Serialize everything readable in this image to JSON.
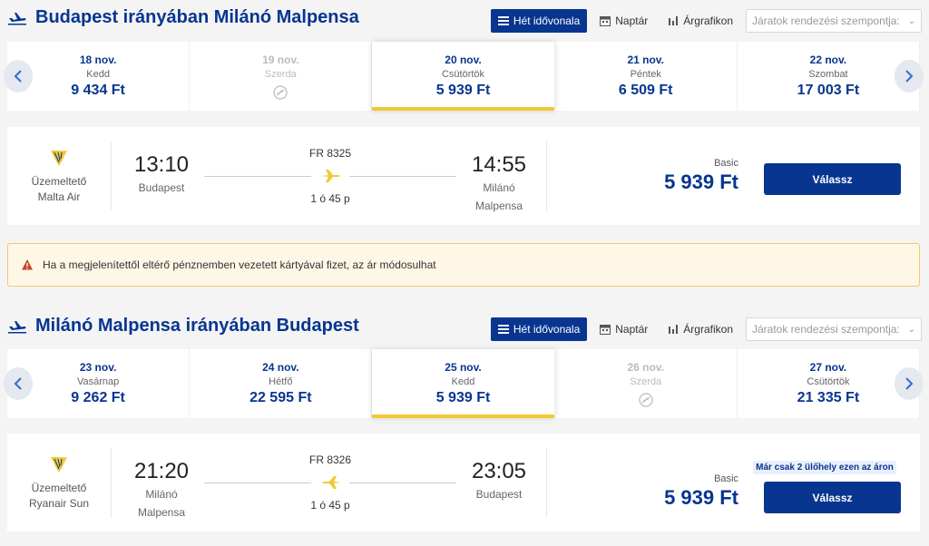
{
  "colors": {
    "brand": "#073590",
    "accent": "#f1c933",
    "warning_bg": "#fff7e6",
    "warning_icon": "#c9442b"
  },
  "view_labels": {
    "week": "Hét idővonala",
    "calendar": "Naptár",
    "chart": "Árgrafikon",
    "sort_placeholder": "Járatok rendezési szempontja:"
  },
  "outbound": {
    "title": "Budapest irányában Milánó Malpensa",
    "dates": [
      {
        "date": "18 nov.",
        "weekday": "Kedd",
        "price": "9 434 Ft",
        "state": "normal"
      },
      {
        "date": "19 nov.",
        "weekday": "Szerda",
        "price": "",
        "state": "disabled"
      },
      {
        "date": "20 nov.",
        "weekday": "Csütörtök",
        "price": "5 939 Ft",
        "state": "selected"
      },
      {
        "date": "21 nov.",
        "weekday": "Péntek",
        "price": "6 509 Ft",
        "state": "normal"
      },
      {
        "date": "22 nov.",
        "weekday": "Szombat",
        "price": "17 003 Ft",
        "state": "normal"
      }
    ],
    "flight": {
      "operator_label": "Üzemeltető",
      "operator_name": "Malta Air",
      "dep_time": "13:10",
      "dep_place_1": "Budapest",
      "dep_place_2": "",
      "flight_no": "FR 8325",
      "duration": "1 ó 45 p",
      "arr_time": "14:55",
      "arr_place_1": "Milánó",
      "arr_place_2": "Malpensa",
      "fare_type": "Basic",
      "price": "5 939 Ft",
      "select_label": "Válassz",
      "seats_badge": ""
    }
  },
  "warning": {
    "text": "Ha a megjelenítettől eltérő pénznemben vezetett kártyával fizet, az ár módosulhat"
  },
  "inbound": {
    "title": "Milánó Malpensa irányában Budapest",
    "dates": [
      {
        "date": "23 nov.",
        "weekday": "Vasárnap",
        "price": "9 262 Ft",
        "state": "normal"
      },
      {
        "date": "24 nov.",
        "weekday": "Hétfő",
        "price": "22 595 Ft",
        "state": "normal"
      },
      {
        "date": "25 nov.",
        "weekday": "Kedd",
        "price": "5 939 Ft",
        "state": "selected"
      },
      {
        "date": "26 nov.",
        "weekday": "Szerda",
        "price": "",
        "state": "disabled"
      },
      {
        "date": "27 nov.",
        "weekday": "Csütörtök",
        "price": "21 335 Ft",
        "state": "normal"
      }
    ],
    "flight": {
      "operator_label": "Üzemeltető",
      "operator_name": "Ryanair Sun",
      "dep_time": "21:20",
      "dep_place_1": "Milánó",
      "dep_place_2": "Malpensa",
      "flight_no": "FR 8326",
      "duration": "1 ó 45 p",
      "arr_time": "23:05",
      "arr_place_1": "Budapest",
      "arr_place_2": "",
      "fare_type": "Basic",
      "price": "5 939 Ft",
      "select_label": "Válassz",
      "seats_badge": "Már csak 2 ülőhely ezen az áron"
    }
  }
}
